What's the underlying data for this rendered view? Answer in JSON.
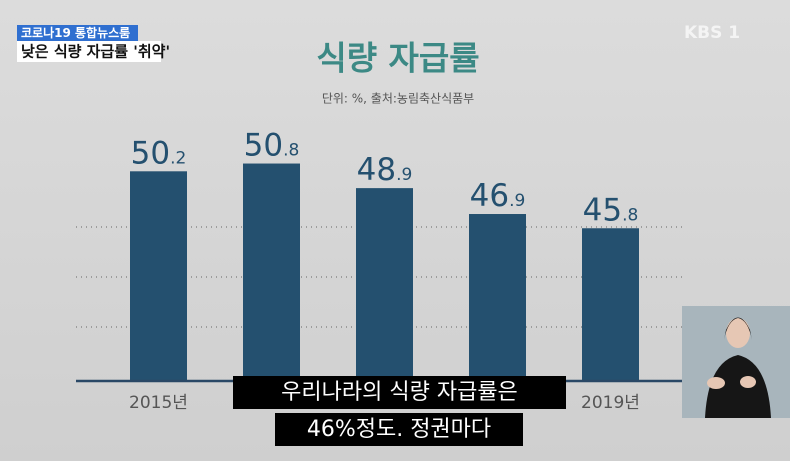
{
  "broadcast": {
    "program": "코로나19 통합뉴스룸",
    "headline": "낮은 식량 자급률 '취약'",
    "channel": "KBS 1",
    "captions": [
      "우리나라의 식량 자급률은",
      "46%정도. 정권마다"
    ]
  },
  "chart_data": {
    "type": "bar",
    "title": "식량 자급률",
    "subtitle": "단위: %, 출처:농림축산식품부",
    "categories": [
      "2015년",
      null,
      null,
      null,
      "2019년"
    ],
    "values": [
      50.2,
      50.8,
      48.9,
      46.9,
      45.8
    ],
    "color": "#24506f",
    "ylim": [
      34,
      52
    ]
  }
}
